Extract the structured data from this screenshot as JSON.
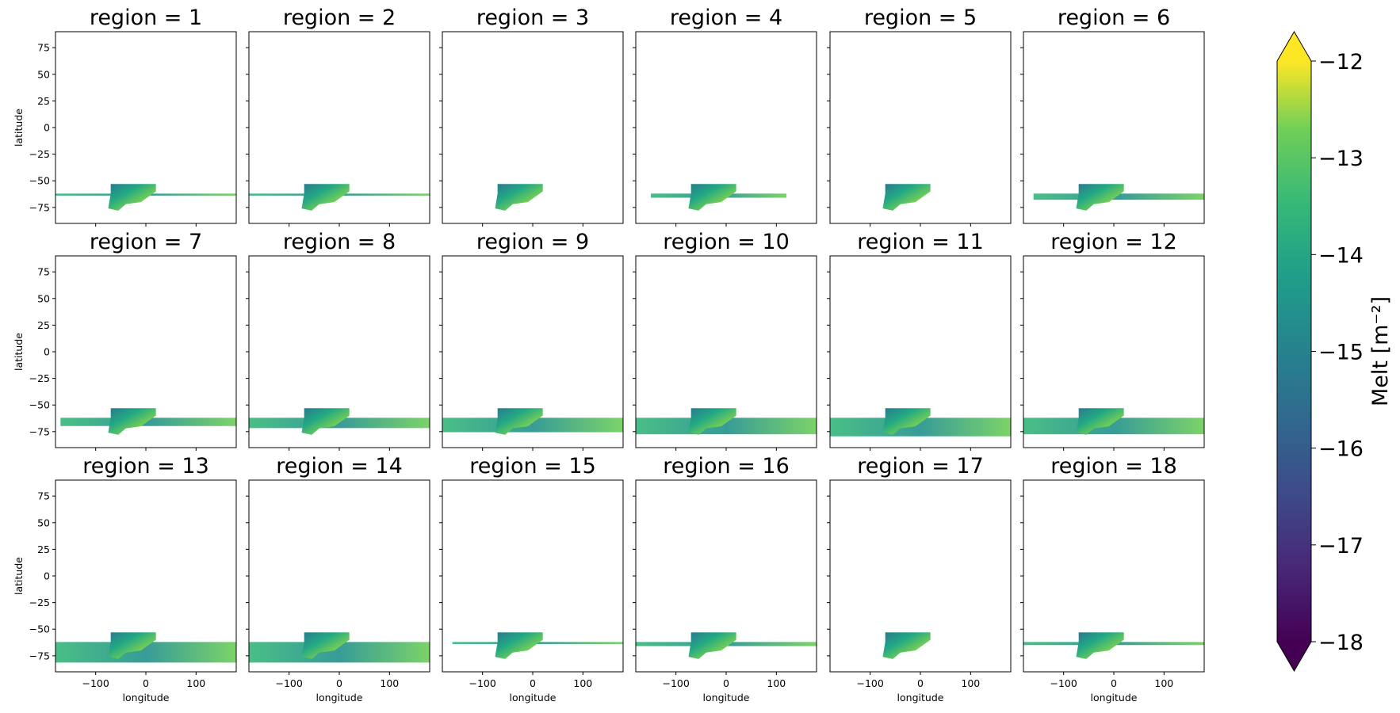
{
  "chart_data": {
    "type": "heatmap",
    "panel_titles": [
      "region = 1",
      "region = 2",
      "region = 3",
      "region = 4",
      "region = 5",
      "region = 6",
      "region = 7",
      "region = 8",
      "region = 9",
      "region = 10",
      "region = 11",
      "region = 12",
      "region = 13",
      "region = 14",
      "region = 15",
      "region = 16",
      "region = 17",
      "region = 18"
    ],
    "xlabel": "longitude",
    "ylabel": "latitude",
    "xlim": [
      -180,
      180
    ],
    "xticks": [
      {
        "value": -100,
        "label": "−100"
      },
      0,
      100
    ],
    "ylim": [
      -90,
      90
    ],
    "yticks": [
      {
        "value": -75,
        "label": "−75"
      },
      {
        "value": -50,
        "label": "−50"
      },
      {
        "value": -25,
        "label": "−25"
      },
      0,
      25,
      50,
      75
    ],
    "colorbar": {
      "label": "Melt [m⁻²]",
      "lim": [
        -18,
        -12
      ],
      "extend": "both",
      "colormap": "viridis",
      "ticks": [
        {
          "value": -12,
          "label": "−12"
        },
        {
          "value": -13,
          "label": "−13"
        },
        {
          "value": -14,
          "label": "−14"
        },
        {
          "value": -15,
          "label": "−15"
        },
        {
          "value": -16,
          "label": "−16"
        },
        {
          "value": -17,
          "label": "−17"
        },
        {
          "value": -18,
          "label": "−18"
        }
      ]
    }
  }
}
